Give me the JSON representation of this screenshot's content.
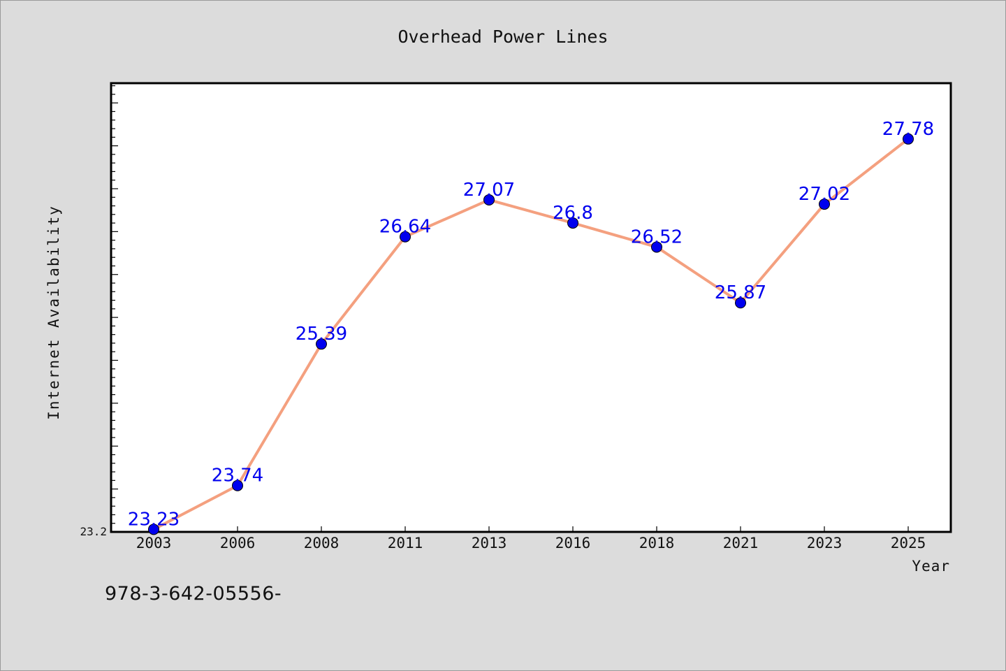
{
  "chart_data": {
    "type": "line",
    "title": "Overhead Power Lines",
    "xlabel": "Year",
    "ylabel": "Internet Availability",
    "categories": [
      "2003",
      "2006",
      "2008",
      "2011",
      "2013",
      "2016",
      "2018",
      "2021",
      "2023",
      "2025"
    ],
    "values": [
      23.23,
      23.74,
      25.39,
      26.64,
      27.07,
      26.8,
      26.52,
      25.87,
      27.02,
      27.78
    ],
    "data_labels": [
      "23.23",
      "23.74",
      "25.39",
      "26.64",
      "27.07",
      "26.8",
      "26.52",
      "25.87",
      "27.02",
      "27.78"
    ],
    "ylim": [
      23.2,
      28.43
    ],
    "y_tick_labels": [
      "23.2"
    ],
    "grid": false,
    "legend": "none",
    "colors": {
      "line": "#f4a07f",
      "marker": "#0000ee",
      "data_label": "#0000ee",
      "plot_bg": "#ffffff",
      "page_bg": "#dcdcdc"
    }
  },
  "footer": {
    "text": "978-3-642-05556-"
  }
}
